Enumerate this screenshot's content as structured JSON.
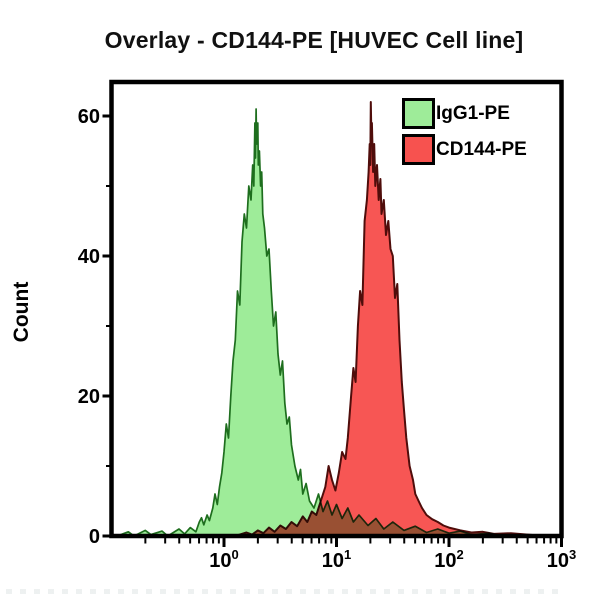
{
  "title": "Overlay - CD144-PE [HUVEC Cell line]",
  "y_axis": {
    "label": "Count",
    "tick_labels": [
      "0",
      "20",
      "40",
      "60"
    ],
    "tick_values": [
      0,
      20,
      40,
      60
    ],
    "minor_tick_values": [
      10,
      30,
      50
    ],
    "visible_max": 65
  },
  "x_axis": {
    "scale": "log10",
    "tick_labels": [
      {
        "base": "10",
        "exp": "0"
      },
      {
        "base": "10",
        "exp": "1"
      },
      {
        "base": "10",
        "exp": "2"
      },
      {
        "base": "10",
        "exp": "3"
      }
    ],
    "tick_values": [
      1,
      10,
      100,
      1000
    ],
    "log_range": [
      -1,
      3
    ]
  },
  "legend": {
    "items": [
      {
        "label": "IgG1-PE",
        "swatch_color": "#9EEC99"
      },
      {
        "label": "CD144-PE",
        "swatch_color": "#F7524F"
      }
    ]
  },
  "styles": {
    "frame_color": "#000000",
    "title_color": "#111111",
    "green_fill": "#9EEC99",
    "green_edge": "#1E6E1E",
    "red_fill": "#F7514E",
    "red_edge": "#4F0D0B"
  },
  "chart_data": {
    "type": "area",
    "variant": "flow-cytometry-histogram-overlay",
    "title": "Overlay - CD144-PE [HUVEC Cell line]",
    "xlabel": "",
    "ylabel": "Count",
    "x_scale": "log10",
    "x_range": [
      0.1,
      1000
    ],
    "ylim": [
      0,
      65
    ],
    "grid": false,
    "legend_position": "top-right-inside",
    "series": [
      {
        "name": "IgG1-PE",
        "role": "isotype-control",
        "fill": "#9EEC99",
        "edge": "#1E6E1E",
        "peak": {
          "x": 1.9,
          "count": 61
        },
        "points_logx_count": [
          [
            -0.95,
            0
          ],
          [
            -0.85,
            0.6
          ],
          [
            -0.8,
            0
          ],
          [
            -0.7,
            0.8
          ],
          [
            -0.65,
            0.2
          ],
          [
            -0.55,
            0.7
          ],
          [
            -0.5,
            0
          ],
          [
            -0.4,
            1
          ],
          [
            -0.35,
            0.3
          ],
          [
            -0.3,
            1.2
          ],
          [
            -0.25,
            0.6
          ],
          [
            -0.22,
            2
          ],
          [
            -0.2,
            2.6
          ],
          [
            -0.18,
            1.6
          ],
          [
            -0.15,
            3
          ],
          [
            -0.13,
            2.2
          ],
          [
            -0.1,
            4
          ],
          [
            -0.08,
            6
          ],
          [
            -0.06,
            4.5
          ],
          [
            -0.04,
            7
          ],
          [
            -0.02,
            9
          ],
          [
            0,
            12
          ],
          [
            0.02,
            16
          ],
          [
            0.04,
            14
          ],
          [
            0.06,
            20
          ],
          [
            0.08,
            25
          ],
          [
            0.1,
            28
          ],
          [
            0.12,
            35
          ],
          [
            0.14,
            33
          ],
          [
            0.16,
            42
          ],
          [
            0.18,
            46
          ],
          [
            0.2,
            44
          ],
          [
            0.22,
            50
          ],
          [
            0.24,
            48
          ],
          [
            0.255,
            53
          ],
          [
            0.265,
            50
          ],
          [
            0.275,
            59
          ],
          [
            0.28,
            54
          ],
          [
            0.285,
            61
          ],
          [
            0.29,
            56
          ],
          [
            0.3,
            59
          ],
          [
            0.305,
            53
          ],
          [
            0.315,
            55
          ],
          [
            0.325,
            50
          ],
          [
            0.335,
            52
          ],
          [
            0.345,
            46
          ],
          [
            0.36,
            44
          ],
          [
            0.38,
            40
          ],
          [
            0.4,
            41
          ],
          [
            0.42,
            35
          ],
          [
            0.44,
            30
          ],
          [
            0.46,
            32
          ],
          [
            0.48,
            26
          ],
          [
            0.5,
            23
          ],
          [
            0.52,
            25
          ],
          [
            0.54,
            19
          ],
          [
            0.56,
            16
          ],
          [
            0.58,
            17
          ],
          [
            0.6,
            13
          ],
          [
            0.63,
            10
          ],
          [
            0.66,
            8
          ],
          [
            0.68,
            9.5
          ],
          [
            0.7,
            6
          ],
          [
            0.73,
            7.5
          ],
          [
            0.76,
            5
          ],
          [
            0.8,
            4
          ],
          [
            0.84,
            6
          ],
          [
            0.88,
            3.5
          ],
          [
            0.92,
            5
          ],
          [
            0.96,
            3
          ],
          [
            1,
            4.5
          ],
          [
            1.05,
            2.5
          ],
          [
            1.1,
            4
          ],
          [
            1.15,
            2
          ],
          [
            1.2,
            3
          ],
          [
            1.28,
            1.5
          ],
          [
            1.35,
            2.5
          ],
          [
            1.42,
            1
          ],
          [
            1.5,
            2
          ],
          [
            1.6,
            0.8
          ],
          [
            1.7,
            1.4
          ],
          [
            1.8,
            0.5
          ],
          [
            1.9,
            1
          ],
          [
            2,
            0.4
          ],
          [
            2.1,
            0.7
          ],
          [
            2.2,
            0.2
          ],
          [
            2.35,
            0.4
          ],
          [
            2.5,
            0
          ]
        ]
      },
      {
        "name": "CD144-PE",
        "role": "stain",
        "fill": "#F7514E",
        "edge": "#4F0D0B",
        "peak": {
          "x": 20,
          "count": 62
        },
        "points_logx_count": [
          [
            0.1,
            0
          ],
          [
            0.2,
            0.5
          ],
          [
            0.25,
            0.2
          ],
          [
            0.3,
            0.8
          ],
          [
            0.35,
            0.4
          ],
          [
            0.4,
            1.2
          ],
          [
            0.45,
            0.6
          ],
          [
            0.5,
            1.5
          ],
          [
            0.55,
            1
          ],
          [
            0.6,
            2
          ],
          [
            0.65,
            1.4
          ],
          [
            0.7,
            2.8
          ],
          [
            0.74,
            2
          ],
          [
            0.78,
            3.5
          ],
          [
            0.82,
            3
          ],
          [
            0.86,
            5
          ],
          [
            0.9,
            7
          ],
          [
            0.93,
            10
          ],
          [
            0.96,
            8
          ],
          [
            0.99,
            6.5
          ],
          [
            1.02,
            9
          ],
          [
            1.05,
            12
          ],
          [
            1.08,
            11
          ],
          [
            1.1,
            14
          ],
          [
            1.13,
            20
          ],
          [
            1.15,
            24
          ],
          [
            1.17,
            22
          ],
          [
            1.19,
            30
          ],
          [
            1.21,
            35
          ],
          [
            1.23,
            33
          ],
          [
            1.25,
            45
          ],
          [
            1.27,
            48
          ],
          [
            1.285,
            52
          ],
          [
            1.295,
            56
          ],
          [
            1.3,
            53
          ],
          [
            1.305,
            62
          ],
          [
            1.31,
            57
          ],
          [
            1.315,
            59
          ],
          [
            1.325,
            52
          ],
          [
            1.335,
            56
          ],
          [
            1.345,
            50
          ],
          [
            1.36,
            53
          ],
          [
            1.375,
            48
          ],
          [
            1.39,
            51
          ],
          [
            1.4,
            46
          ],
          [
            1.42,
            48
          ],
          [
            1.44,
            43
          ],
          [
            1.46,
            45
          ],
          [
            1.48,
            41
          ],
          [
            1.5,
            40
          ],
          [
            1.52,
            34
          ],
          [
            1.54,
            36
          ],
          [
            1.56,
            28
          ],
          [
            1.58,
            22
          ],
          [
            1.6,
            18
          ],
          [
            1.62,
            14
          ],
          [
            1.65,
            10
          ],
          [
            1.68,
            8
          ],
          [
            1.7,
            6
          ],
          [
            1.73,
            5
          ],
          [
            1.76,
            4
          ],
          [
            1.8,
            3
          ],
          [
            1.85,
            2.4
          ],
          [
            1.9,
            2
          ],
          [
            1.95,
            1.5
          ],
          [
            2,
            1.2
          ],
          [
            2.1,
            0.8
          ],
          [
            2.2,
            0.5
          ],
          [
            2.3,
            0.6
          ],
          [
            2.4,
            0.3
          ],
          [
            2.55,
            0.4
          ],
          [
            2.7,
            0.2
          ],
          [
            2.85,
            0
          ]
        ]
      }
    ]
  }
}
